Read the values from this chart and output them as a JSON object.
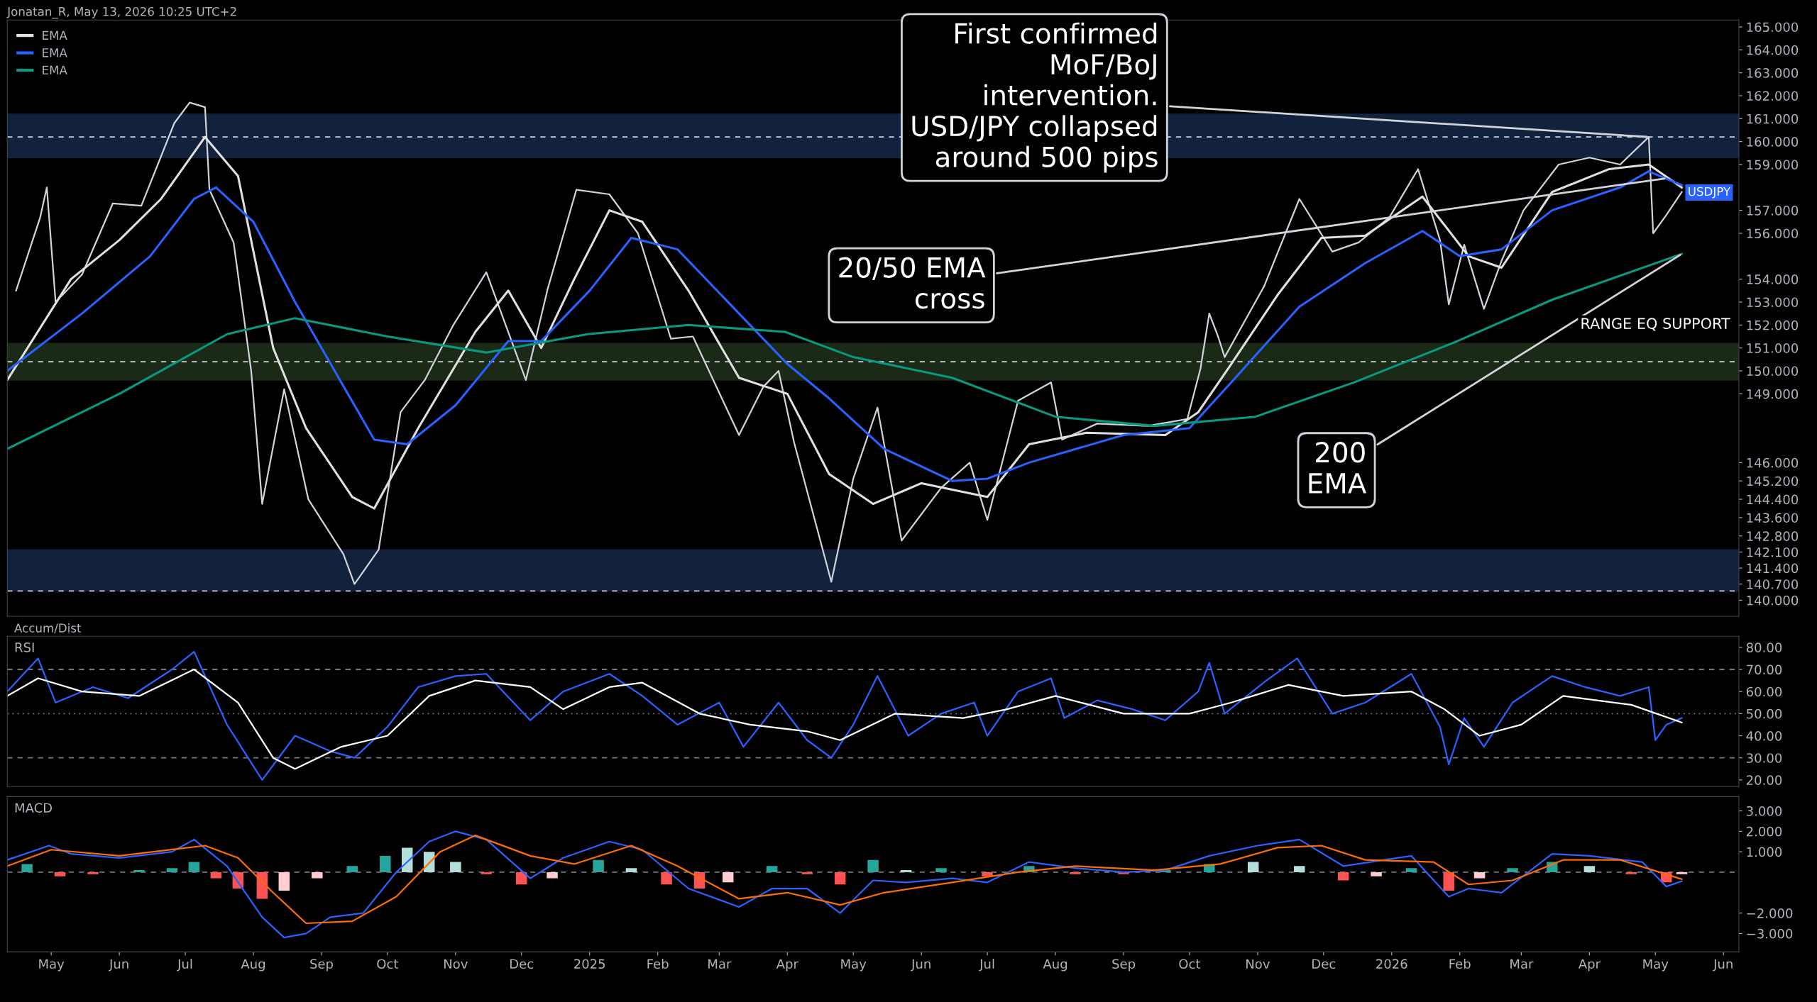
{
  "chart_data": [
    {
      "type": "line",
      "xlim": [
        "2024-04-11",
        "2026-06-08"
      ],
      "ylim": [
        139.3,
        165.3
      ],
      "tick_labels": "y",
      "legend": "top left",
      "yticks": [
        {
          "value": 165,
          "label": "165.000"
        },
        {
          "value": 164,
          "label": "164.000"
        },
        {
          "value": 163,
          "label": "163.000"
        },
        {
          "value": 162,
          "label": "162.000"
        },
        {
          "value": 161,
          "label": "161.000"
        },
        {
          "value": 160,
          "label": "160.000"
        },
        {
          "value": 159,
          "label": "159.000"
        },
        {
          "value": 157,
          "label": "157.000"
        },
        {
          "value": 156,
          "label": "156.000"
        },
        {
          "value": 154,
          "label": "154.000"
        },
        {
          "value": 153,
          "label": "153.000"
        },
        {
          "value": 152,
          "label": "152.000"
        },
        {
          "value": 151,
          "label": "151.000"
        },
        {
          "value": 150,
          "label": "150.000"
        },
        {
          "value": 149,
          "label": "149.000"
        },
        {
          "value": 146,
          "label": "146.000"
        },
        {
          "value": 145.2,
          "label": "145.200"
        },
        {
          "value": 144.4,
          "label": "144.400"
        },
        {
          "value": 143.6,
          "label": "143.600"
        },
        {
          "value": 142.8,
          "label": "142.800"
        },
        {
          "value": 142.1,
          "label": "142.100"
        },
        {
          "value": 141.4,
          "label": "141.400"
        },
        {
          "value": 140.7,
          "label": "140.700"
        },
        {
          "value": 140,
          "label": "140.000"
        }
      ],
      "bands": [
        {
          "axis": "y",
          "from": 159.3,
          "to": 161.2,
          "color": "#13223c"
        },
        {
          "axis": "y",
          "from": 149.6,
          "to": 151.2,
          "color": "#1b2a17",
          "label": "RANGE EQ SUPPORT"
        },
        {
          "axis": "y",
          "from": 140.4,
          "to": 142.2,
          "color": "#13223c"
        }
      ],
      "ref_lines": [
        {
          "axis": "y",
          "value": 160.2,
          "line_style": "dashed",
          "color": "#d1d4dc"
        },
        {
          "axis": "y",
          "value": 150.4,
          "line_style": "dashed",
          "color": "#d1d4dc"
        },
        {
          "axis": "y",
          "value": 140.4,
          "line_style": "dashed",
          "color": "#d1d4dc"
        }
      ],
      "annotations": [
        "Jonatan_R, May 13, 2026 10:25 UTC+2",
        {
          "text": "First confirmed\nMoF/BoJ\nintervention.\nUSD/JPY collapsed\naround 500 pips",
          "x": "2026-04-28",
          "y": 160.2
        },
        {
          "text": "20/50 EMA\ncross",
          "x": "2026-05-06",
          "y": 158.4
        },
        {
          "text": "200\nEMA",
          "x": "2026-05-13",
          "y": 155.1
        },
        {
          "text": "USDJPY",
          "x": "2026-05-13",
          "y": 157.778
        }
      ],
      "series": [
        {
          "color": "#d1d4dc",
          "x": [
            "2024-04-15",
            "2024-04-26",
            "2024-04-29",
            "2024-05-03",
            "2024-05-15",
            "2024-05-29",
            "2024-06-11",
            "2024-06-26",
            "2024-07-03",
            "2024-07-10",
            "2024-07-12",
            "2024-07-23",
            "2024-07-31",
            "2024-08-05",
            "2024-08-15",
            "2024-08-26",
            "2024-09-11",
            "2024-09-16",
            "2024-09-27",
            "2024-10-07",
            "2024-10-18",
            "2024-10-31",
            "2024-11-15",
            "2024-12-03",
            "2024-12-13",
            "2024-12-26",
            "2025-01-10",
            "2025-01-23",
            "2025-02-07",
            "2025-02-17",
            "2025-03-10",
            "2025-03-21",
            "2025-03-28",
            "2025-04-04",
            "2025-04-21",
            "2025-05-01",
            "2025-05-12",
            "2025-05-23",
            "2025-06-10",
            "2025-06-23",
            "2025-07-01",
            "2025-07-15",
            "2025-07-30",
            "2025-08-04",
            "2025-08-20",
            "2025-09-12",
            "2025-09-30",
            "2025-10-06",
            "2025-10-10",
            "2025-10-14",
            "2025-10-17",
            "2025-11-04",
            "2025-11-20",
            "2025-12-05",
            "2025-12-17",
            "2025-12-31",
            "2026-01-13",
            "2026-01-23",
            "2026-01-27",
            "2026-02-03",
            "2026-02-12",
            "2026-02-20",
            "2026-03-02",
            "2026-03-18",
            "2026-04-01",
            "2026-04-15",
            "2026-04-28",
            "2026-04-30",
            "2026-05-06",
            "2026-05-13"
          ],
          "values": [
            153.5,
            156.7,
            158.0,
            153.0,
            154.2,
            157.3,
            157.2,
            160.8,
            161.7,
            161.5,
            157.9,
            155.6,
            150.0,
            144.2,
            149.2,
            144.4,
            142.0,
            140.7,
            142.2,
            148.2,
            149.6,
            152.0,
            154.3,
            149.6,
            153.6,
            157.9,
            157.7,
            156.0,
            151.4,
            151.5,
            147.2,
            149.3,
            150.0,
            146.9,
            140.8,
            145.3,
            148.4,
            142.6,
            144.9,
            146.0,
            143.5,
            148.7,
            149.5,
            147.0,
            147.7,
            147.6,
            147.9,
            150.1,
            152.5,
            151.5,
            150.6,
            153.7,
            157.5,
            155.2,
            155.6,
            156.7,
            158.8,
            155.7,
            152.9,
            155.5,
            152.7,
            154.8,
            157.0,
            159.0,
            159.3,
            159.0,
            160.2,
            156.0,
            156.8,
            157.8
          ]
        },
        {
          "name": "EMA",
          "color": "#e0e0e0",
          "x": [
            "2024-04-11",
            "2024-05-10",
            "2024-06-01",
            "2024-06-20",
            "2024-07-10",
            "2024-07-25",
            "2024-08-10",
            "2024-08-25",
            "2024-09-15",
            "2024-09-25",
            "2024-10-15",
            "2024-11-10",
            "2024-11-25",
            "2024-12-10",
            "2024-12-25",
            "2025-01-10",
            "2025-01-25",
            "2025-02-15",
            "2025-03-10",
            "2025-04-01",
            "2025-04-20",
            "2025-05-10",
            "2025-06-01",
            "2025-07-01",
            "2025-07-20",
            "2025-08-15",
            "2025-09-20",
            "2025-10-05",
            "2025-10-20",
            "2025-11-10",
            "2025-11-30",
            "2025-12-20",
            "2026-01-15",
            "2026-02-05",
            "2026-02-20",
            "2026-03-15",
            "2026-04-10",
            "2026-04-28",
            "2026-05-13"
          ],
          "values": [
            149.6,
            154.0,
            155.7,
            157.5,
            160.2,
            158.5,
            151.0,
            147.5,
            144.5,
            144.0,
            147.5,
            151.7,
            153.5,
            151.0,
            154.0,
            157.0,
            156.5,
            153.5,
            149.7,
            149.0,
            145.5,
            144.2,
            145.1,
            144.5,
            146.8,
            147.3,
            147.2,
            148.2,
            150.3,
            153.3,
            155.8,
            155.9,
            157.6,
            155.0,
            154.5,
            157.8,
            158.8,
            159.0,
            158.0
          ]
        },
        {
          "name": "EMA",
          "color": "#2962ff",
          "x": [
            "2024-04-11",
            "2024-05-15",
            "2024-06-15",
            "2024-07-05",
            "2024-07-15",
            "2024-08-01",
            "2024-08-20",
            "2024-09-10",
            "2024-09-25",
            "2024-10-10",
            "2024-11-01",
            "2024-11-25",
            "2024-12-10",
            "2025-01-01",
            "2025-01-20",
            "2025-02-10",
            "2025-03-10",
            "2025-04-01",
            "2025-04-20",
            "2025-05-15",
            "2025-06-15",
            "2025-07-01",
            "2025-07-20",
            "2025-09-01",
            "2025-10-01",
            "2025-10-20",
            "2025-11-20",
            "2025-12-20",
            "2026-01-15",
            "2026-02-01",
            "2026-02-20",
            "2026-03-15",
            "2026-04-15",
            "2026-04-28",
            "2026-05-13"
          ],
          "values": [
            150.0,
            152.5,
            155.0,
            157.5,
            158.0,
            156.5,
            153.0,
            149.5,
            147.0,
            146.8,
            148.5,
            151.3,
            151.3,
            153.5,
            155.8,
            155.3,
            152.5,
            150.3,
            148.8,
            146.6,
            145.2,
            145.3,
            146.0,
            147.2,
            147.5,
            149.5,
            152.8,
            154.7,
            156.1,
            155.0,
            155.3,
            157.0,
            158.0,
            158.7,
            158.1
          ]
        },
        {
          "name": "EMA",
          "color": "#089981",
          "x": [
            "2024-04-11",
            "2024-06-01",
            "2024-07-20",
            "2024-08-20",
            "2024-10-01",
            "2024-11-15",
            "2024-12-31",
            "2025-02-15",
            "2025-03-31",
            "2025-05-01",
            "2025-06-15",
            "2025-08-01",
            "2025-09-15",
            "2025-10-31",
            "2025-12-15",
            "2026-01-31",
            "2026-03-15",
            "2026-05-13"
          ],
          "values": [
            146.6,
            149.0,
            151.6,
            152.3,
            151.5,
            150.8,
            151.6,
            152.0,
            151.7,
            150.6,
            149.7,
            148.0,
            147.6,
            148.0,
            149.5,
            151.3,
            153.1,
            155.1
          ]
        }
      ]
    },
    {
      "type": "line",
      "title": "RSI",
      "xlim": [
        "2024-04-11",
        "2026-06-08"
      ],
      "ylim": [
        17,
        85
      ],
      "tick_labels": "y",
      "yticks": [
        {
          "value": 80,
          "label": "80.00"
        },
        {
          "value": 70,
          "label": "70.00"
        },
        {
          "value": 60,
          "label": "60.00"
        },
        {
          "value": 50,
          "label": "50.00"
        },
        {
          "value": 40,
          "label": "40.00"
        },
        {
          "value": 30,
          "label": "30.00"
        },
        {
          "value": 20,
          "label": "20.00"
        }
      ],
      "ref_lines": [
        {
          "axis": "y",
          "value": 70,
          "line_style": "dashed",
          "color": "#787b86"
        },
        {
          "axis": "y",
          "value": 50,
          "line_style": "dotted",
          "color": "#787b86"
        },
        {
          "axis": "y",
          "value": 30,
          "line_style": "dashed",
          "color": "#787b86"
        }
      ],
      "annotations": [
        "Accum/Dist"
      ],
      "series": [
        {
          "color": "#2962ff",
          "x": [
            "2024-04-11",
            "2024-04-25",
            "2024-05-03",
            "2024-05-20",
            "2024-06-05",
            "2024-06-25",
            "2024-07-05",
            "2024-07-20",
            "2024-08-05",
            "2024-08-20",
            "2024-09-05",
            "2024-09-16",
            "2024-10-01",
            "2024-10-15",
            "2024-11-01",
            "2024-11-15",
            "2024-12-05",
            "2024-12-20",
            "2025-01-10",
            "2025-01-25",
            "2025-02-10",
            "2025-03-01",
            "2025-03-12",
            "2025-03-28",
            "2025-04-10",
            "2025-04-21",
            "2025-05-01",
            "2025-05-12",
            "2025-05-26",
            "2025-06-10",
            "2025-06-25",
            "2025-07-01",
            "2025-07-15",
            "2025-07-30",
            "2025-08-05",
            "2025-08-20",
            "2025-09-05",
            "2025-09-20",
            "2025-10-05",
            "2025-10-10",
            "2025-10-17",
            "2025-11-05",
            "2025-11-19",
            "2025-12-05",
            "2025-12-20",
            "2026-01-10",
            "2026-01-23",
            "2026-01-27",
            "2026-02-03",
            "2026-02-12",
            "2026-02-25",
            "2026-03-15",
            "2026-03-30",
            "2026-04-15",
            "2026-04-28",
            "2026-05-01",
            "2026-05-06",
            "2026-05-13"
          ],
          "values": [
            60,
            75,
            55,
            62,
            57,
            70,
            78,
            45,
            20,
            40,
            33,
            30,
            44,
            62,
            67,
            68,
            47,
            60,
            68,
            58,
            45,
            55,
            35,
            55,
            38,
            30,
            45,
            67,
            40,
            50,
            55,
            40,
            60,
            66,
            48,
            56,
            52,
            47,
            60,
            73,
            50,
            65,
            75,
            50,
            55,
            68,
            44,
            27,
            48,
            35,
            55,
            67,
            62,
            58,
            62,
            38,
            45,
            48
          ]
        },
        {
          "color": "#ffffff",
          "x": [
            "2024-04-11",
            "2024-04-25",
            "2024-05-15",
            "2024-06-10",
            "2024-07-05",
            "2024-07-25",
            "2024-08-10",
            "2024-08-20",
            "2024-09-10",
            "2024-10-01",
            "2024-10-20",
            "2024-11-10",
            "2024-12-05",
            "2024-12-20",
            "2025-01-10",
            "2025-01-25",
            "2025-02-20",
            "2025-03-15",
            "2025-04-10",
            "2025-04-25",
            "2025-05-20",
            "2025-06-20",
            "2025-07-10",
            "2025-08-01",
            "2025-09-01",
            "2025-10-01",
            "2025-10-20",
            "2025-11-15",
            "2025-12-10",
            "2026-01-10",
            "2026-01-25",
            "2026-02-10",
            "2026-03-01",
            "2026-03-20",
            "2026-04-20",
            "2026-05-13"
          ],
          "values": [
            58,
            66,
            60,
            58,
            70,
            55,
            30,
            25,
            35,
            40,
            58,
            65,
            62,
            52,
            62,
            64,
            50,
            45,
            42,
            38,
            50,
            48,
            52,
            58,
            50,
            50,
            55,
            63,
            58,
            60,
            52,
            40,
            45,
            58,
            54,
            46
          ]
        }
      ]
    },
    {
      "type": "line",
      "title": "MACD",
      "xlim": [
        "2024-04-11",
        "2026-06-08"
      ],
      "ylim": [
        -3.9,
        3.7
      ],
      "xticks": [
        {
          "value": "2024-05-01",
          "label": "May"
        },
        {
          "value": "2024-06-01",
          "label": "Jun"
        },
        {
          "value": "2024-07-01",
          "label": "Jul"
        },
        {
          "value": "2024-08-01",
          "label": "Aug"
        },
        {
          "value": "2024-09-01",
          "label": "Sep"
        },
        {
          "value": "2024-10-01",
          "label": "Oct"
        },
        {
          "value": "2024-11-01",
          "label": "Nov"
        },
        {
          "value": "2024-12-01",
          "label": "Dec"
        },
        {
          "value": "2025-01-01",
          "label": "2025"
        },
        {
          "value": "2025-02-01",
          "label": "Feb"
        },
        {
          "value": "2025-03-01",
          "label": "Mar"
        },
        {
          "value": "2025-04-01",
          "label": "Apr"
        },
        {
          "value": "2025-05-01",
          "label": "May"
        },
        {
          "value": "2025-06-01",
          "label": "Jun"
        },
        {
          "value": "2025-07-01",
          "label": "Jul"
        },
        {
          "value": "2025-08-01",
          "label": "Aug"
        },
        {
          "value": "2025-09-01",
          "label": "Sep"
        },
        {
          "value": "2025-10-01",
          "label": "Oct"
        },
        {
          "value": "2025-11-01",
          "label": "Nov"
        },
        {
          "value": "2025-12-01",
          "label": "Dec"
        },
        {
          "value": "2026-01-01",
          "label": "2026"
        },
        {
          "value": "2026-02-01",
          "label": "Feb"
        },
        {
          "value": "2026-03-01",
          "label": "Mar"
        },
        {
          "value": "2026-04-01",
          "label": "Apr"
        },
        {
          "value": "2026-05-01",
          "label": "May"
        },
        {
          "value": "2026-06-01",
          "label": "Jun"
        }
      ],
      "yticks": [
        {
          "value": 3,
          "label": "3.000"
        },
        {
          "value": 2,
          "label": "2.000"
        },
        {
          "value": 1,
          "label": "1.000"
        },
        {
          "value": -2,
          "label": "−2.000"
        },
        {
          "value": -3,
          "label": "−3.000"
        }
      ],
      "ref_lines": [
        {
          "axis": "y",
          "value": 0,
          "line_style": "dashed",
          "color": "#787b86"
        }
      ],
      "series": [
        {
          "type": "bar",
          "x": [
            "2024-04-20",
            "2024-05-05",
            "2024-05-20",
            "2024-06-10",
            "2024-06-25",
            "2024-07-05",
            "2024-07-15",
            "2024-07-25",
            "2024-08-05",
            "2024-08-15",
            "2024-08-30",
            "2024-09-15",
            "2024-09-30",
            "2024-10-10",
            "2024-10-20",
            "2024-11-01",
            "2024-11-15",
            "2024-12-01",
            "2024-12-15",
            "2025-01-05",
            "2025-01-20",
            "2025-02-05",
            "2025-02-20",
            "2025-03-05",
            "2025-03-25",
            "2025-04-10",
            "2025-04-25",
            "2025-05-10",
            "2025-05-25",
            "2025-06-10",
            "2025-07-01",
            "2025-07-20",
            "2025-08-10",
            "2025-09-01",
            "2025-09-20",
            "2025-10-10",
            "2025-10-30",
            "2025-11-20",
            "2025-12-10",
            "2025-12-25",
            "2026-01-10",
            "2026-01-27",
            "2026-02-10",
            "2026-02-25",
            "2026-03-15",
            "2026-04-01",
            "2026-04-20",
            "2026-05-06",
            "2026-05-13"
          ],
          "values": [
            0.4,
            -0.2,
            -0.1,
            0.1,
            0.2,
            0.5,
            -0.3,
            -0.8,
            -1.3,
            -0.9,
            -0.3,
            0.3,
            0.8,
            1.2,
            1.0,
            0.5,
            -0.1,
            -0.6,
            -0.3,
            0.6,
            0.2,
            -0.6,
            -0.8,
            -0.5,
            0.3,
            -0.1,
            -0.6,
            0.6,
            0.1,
            0.2,
            -0.2,
            0.3,
            -0.1,
            -0.1,
            0.1,
            0.4,
            0.5,
            0.3,
            -0.4,
            -0.2,
            0.2,
            -0.9,
            -0.3,
            0.2,
            0.5,
            0.3,
            -0.1,
            -0.5,
            -0.1
          ],
          "colors": [
            "#26a69a",
            "#ff5252",
            "#ff5252",
            "#26a69a",
            "#26a69a",
            "#26a69a",
            "#ff5252",
            "#ff5252",
            "#ff5252",
            "#ffcdd2",
            "#ffcdd2",
            "#26a69a",
            "#26a69a",
            "#b2dfdb",
            "#b2dfdb",
            "#b2dfdb",
            "#ff5252",
            "#ff5252",
            "#ffcdd2",
            "#26a69a",
            "#b2dfdb",
            "#ff5252",
            "#ff5252",
            "#ffcdd2",
            "#26a69a",
            "#ff5252",
            "#ff5252",
            "#26a69a",
            "#b2dfdb",
            "#26a69a",
            "#ff5252",
            "#26a69a",
            "#ff5252",
            "#ff5252",
            "#26a69a",
            "#26a69a",
            "#b2dfdb",
            "#b2dfdb",
            "#ff5252",
            "#ffcdd2",
            "#26a69a",
            "#ff5252",
            "#ffcdd2",
            "#26a69a",
            "#26a69a",
            "#b2dfdb",
            "#ff5252",
            "#ff5252",
            "#ffcdd2"
          ]
        },
        {
          "color": "#2962ff",
          "x": [
            "2024-04-11",
            "2024-04-30",
            "2024-05-10",
            "2024-06-01",
            "2024-06-25",
            "2024-07-05",
            "2024-07-20",
            "2024-08-05",
            "2024-08-15",
            "2024-08-25",
            "2024-09-05",
            "2024-09-20",
            "2024-10-05",
            "2024-10-20",
            "2024-11-01",
            "2024-11-15",
            "2024-12-05",
            "2024-12-20",
            "2025-01-10",
            "2025-01-25",
            "2025-02-15",
            "2025-03-10",
            "2025-03-25",
            "2025-04-10",
            "2025-04-25",
            "2025-05-10",
            "2025-05-25",
            "2025-06-15",
            "2025-07-01",
            "2025-07-20",
            "2025-08-10",
            "2025-09-01",
            "2025-09-20",
            "2025-10-10",
            "2025-11-01",
            "2025-11-20",
            "2025-12-10",
            "2026-01-10",
            "2026-01-27",
            "2026-02-05",
            "2026-02-20",
            "2026-03-15",
            "2026-04-01",
            "2026-04-25",
            "2026-05-06",
            "2026-05-13"
          ],
          "values": [
            0.6,
            1.3,
            0.9,
            0.7,
            1.0,
            1.6,
            0.3,
            -2.2,
            -3.2,
            -3.0,
            -2.2,
            -2.0,
            0.0,
            1.5,
            2.0,
            1.6,
            -0.3,
            0.7,
            1.5,
            1.1,
            -0.8,
            -1.7,
            -0.8,
            -0.8,
            -2.0,
            -0.4,
            -0.5,
            -0.3,
            -0.5,
            0.5,
            0.2,
            0.0,
            0.1,
            0.8,
            1.3,
            1.6,
            0.3,
            0.8,
            -1.2,
            -0.8,
            -1.0,
            0.9,
            0.8,
            0.5,
            -0.7,
            -0.44
          ]
        },
        {
          "color": "#ff6d00",
          "x": [
            "2024-04-11",
            "2024-05-01",
            "2024-06-01",
            "2024-07-10",
            "2024-07-25",
            "2024-08-10",
            "2024-08-25",
            "2024-09-15",
            "2024-10-05",
            "2024-10-25",
            "2024-11-10",
            "2024-12-05",
            "2024-12-25",
            "2025-01-20",
            "2025-02-10",
            "2025-03-10",
            "2025-04-01",
            "2025-04-25",
            "2025-05-15",
            "2025-06-15",
            "2025-07-15",
            "2025-08-10",
            "2025-09-15",
            "2025-10-15",
            "2025-11-10",
            "2025-11-30",
            "2025-12-20",
            "2026-01-20",
            "2026-02-05",
            "2026-02-25",
            "2026-03-20",
            "2026-04-15",
            "2026-05-13"
          ],
          "values": [
            0.3,
            1.1,
            0.8,
            1.3,
            0.7,
            -1.0,
            -2.5,
            -2.4,
            -1.2,
            1.0,
            1.8,
            0.8,
            0.4,
            1.3,
            0.3,
            -1.3,
            -1.0,
            -1.6,
            -1.0,
            -0.5,
            0.0,
            0.3,
            0.1,
            0.4,
            1.2,
            1.3,
            0.6,
            0.5,
            -0.6,
            -0.4,
            0.6,
            0.6,
            -0.34
          ]
        }
      ]
    }
  ]
}
